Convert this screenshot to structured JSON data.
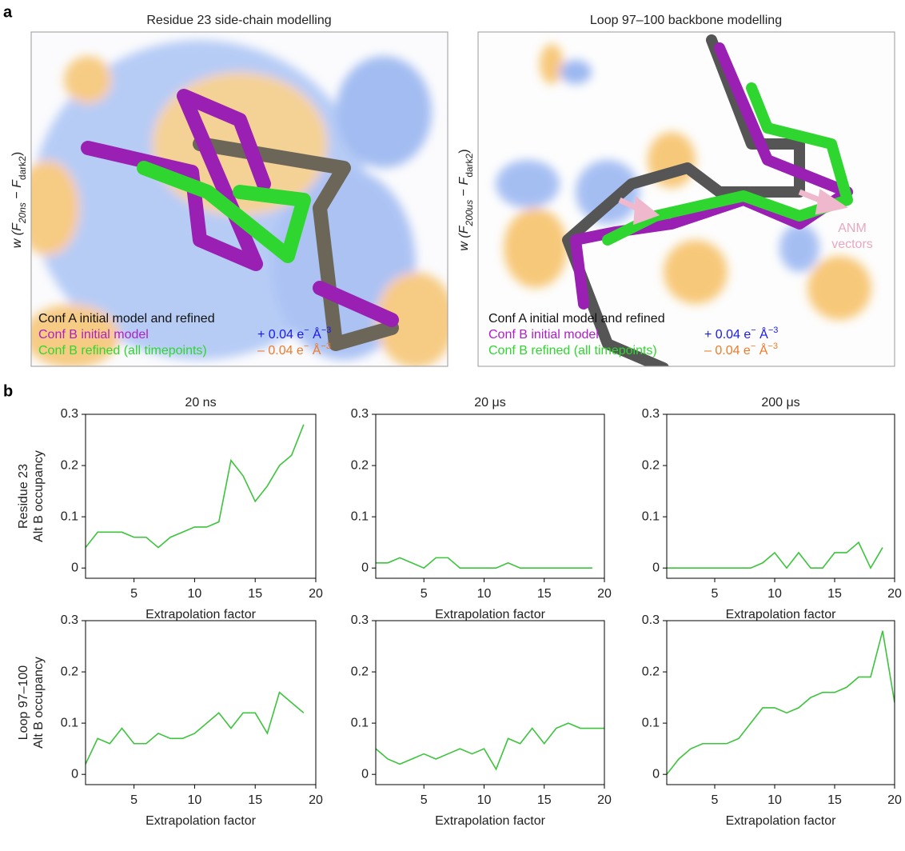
{
  "panel_labels": [
    "a",
    "b"
  ],
  "panel_a": [
    {
      "title": "Residue 23 side-chain modelling",
      "ylabel": [
        "w (",
        "F",
        "20ns",
        " − ",
        "F",
        "dark2",
        ")"
      ],
      "legend": [
        "Conf A initial model and refined",
        "Conf B initial model",
        "Conf B refined (all timepoints)"
      ],
      "legend_colors": [
        "#111111",
        "#b01ec8",
        "#2fd62f"
      ],
      "density": [
        [
          "+ 0.04 e",
          "−",
          " Å",
          "−3"
        ],
        [
          "– 0.04 e",
          "−",
          " Å",
          "−3"
        ]
      ],
      "density_colors": [
        "#1a1aee",
        "#f07a2a"
      ]
    },
    {
      "title": "Loop 97–100 backbone modelling",
      "ylabel": [
        "w (",
        "F",
        "200us",
        " − ",
        "F",
        "dark2",
        ")"
      ],
      "legend": [
        "Conf A initial model and refined",
        "Conf B initial model",
        "Conf B refined (all timepoints)"
      ],
      "legend_colors": [
        "#111111",
        "#b01ec8",
        "#2fd62f"
      ],
      "density": [
        [
          "+ 0.04 e",
          "−",
          " Å",
          "−3"
        ],
        [
          "– 0.04 e",
          "−",
          " Å",
          "−3"
        ]
      ],
      "density_colors": [
        "#1a1aee",
        "#f07a2a"
      ],
      "annotation": [
        "ANM",
        "vectors"
      ]
    }
  ],
  "chart_data": [
    {
      "type": "line",
      "title": "20 ns",
      "ylabel": [
        "Residue 23",
        "Alt B occupancy"
      ],
      "xlabel": "Extrapolation factor",
      "color": "#3cc43c",
      "x": [
        1,
        2,
        3,
        4,
        5,
        6,
        7,
        8,
        9,
        10,
        11,
        12,
        13,
        14,
        15,
        16,
        17,
        18,
        19
      ],
      "values": [
        0.04,
        0.07,
        0.07,
        0.07,
        0.06,
        0.06,
        0.04,
        0.06,
        0.07,
        0.08,
        0.08,
        0.09,
        0.21,
        0.18,
        0.13,
        0.16,
        0.2,
        0.22,
        0.28
      ],
      "xlim": [
        1,
        20
      ],
      "ylim": [
        -0.02,
        0.3
      ],
      "xticks": [
        5,
        10,
        15,
        20
      ],
      "yticks": [
        0,
        0.1,
        0.2,
        0.3
      ]
    },
    {
      "type": "line",
      "title": "20 μs",
      "xlabel": "Extrapolation factor",
      "color": "#3cc43c",
      "x": [
        1,
        2,
        3,
        4,
        5,
        6,
        7,
        8,
        9,
        10,
        11,
        12,
        13,
        14,
        15,
        16,
        17,
        18,
        19
      ],
      "values": [
        0.01,
        0.01,
        0.02,
        0.01,
        0,
        0.02,
        0.02,
        0,
        0,
        0,
        0,
        0.01,
        0,
        0,
        0,
        0,
        0,
        0,
        0
      ],
      "xlim": [
        1,
        20
      ],
      "ylim": [
        -0.02,
        0.3
      ],
      "xticks": [
        5,
        10,
        15,
        20
      ],
      "yticks": [
        0,
        0.1,
        0.2,
        0.3
      ]
    },
    {
      "type": "line",
      "title": "200 μs",
      "xlabel": "Extrapolation factor",
      "color": "#3cc43c",
      "x": [
        1,
        2,
        3,
        4,
        5,
        6,
        7,
        8,
        9,
        10,
        11,
        12,
        13,
        14,
        15,
        16,
        17,
        18,
        19
      ],
      "values": [
        0,
        0,
        0,
        0,
        0,
        0,
        0,
        0,
        0.01,
        0.03,
        0,
        0.03,
        0,
        0,
        0.03,
        0.03,
        0.05,
        0,
        0.04
      ],
      "xlim": [
        1,
        20
      ],
      "ylim": [
        -0.02,
        0.3
      ],
      "xticks": [
        5,
        10,
        15,
        20
      ],
      "yticks": [
        0,
        0.1,
        0.2,
        0.3
      ]
    },
    {
      "type": "line",
      "ylabel": [
        "Loop 97–100",
        "Alt B occupancy"
      ],
      "xlabel": "Extrapolation factor",
      "color": "#3cc43c",
      "x": [
        1,
        2,
        3,
        4,
        5,
        6,
        7,
        8,
        9,
        10,
        11,
        12,
        13,
        14,
        15,
        16,
        17,
        18,
        19
      ],
      "values": [
        0.02,
        0.07,
        0.06,
        0.09,
        0.06,
        0.06,
        0.08,
        0.07,
        0.07,
        0.08,
        0.1,
        0.12,
        0.09,
        0.12,
        0.12,
        0.08,
        0.16,
        0.14,
        0.12
      ],
      "xlim": [
        1,
        20
      ],
      "ylim": [
        -0.02,
        0.3
      ],
      "xticks": [
        5,
        10,
        15,
        20
      ],
      "yticks": [
        0,
        0.1,
        0.2,
        0.3
      ]
    },
    {
      "type": "line",
      "xlabel": "Extrapolation factor",
      "color": "#3cc43c",
      "x": [
        1,
        2,
        3,
        4,
        5,
        6,
        7,
        8,
        9,
        10,
        11,
        12,
        13,
        14,
        15,
        16,
        17,
        18,
        19,
        20
      ],
      "values": [
        0.05,
        0.03,
        0.02,
        0.03,
        0.04,
        0.03,
        0.04,
        0.05,
        0.04,
        0.05,
        0.01,
        0.07,
        0.06,
        0.09,
        0.06,
        0.09,
        0.1,
        0.09,
        0.09,
        0.09
      ],
      "xlim": [
        1,
        20
      ],
      "ylim": [
        -0.02,
        0.3
      ],
      "xticks": [
        5,
        10,
        15,
        20
      ],
      "yticks": [
        0,
        0.1,
        0.2,
        0.3
      ]
    },
    {
      "type": "line",
      "xlabel": "Extrapolation factor",
      "color": "#3cc43c",
      "x": [
        1,
        2,
        3,
        4,
        5,
        6,
        7,
        8,
        9,
        10,
        11,
        12,
        13,
        14,
        15,
        16,
        17,
        18,
        19,
        20
      ],
      "values": [
        0,
        0.03,
        0.05,
        0.06,
        0.06,
        0.06,
        0.07,
        0.1,
        0.13,
        0.13,
        0.12,
        0.13,
        0.15,
        0.16,
        0.16,
        0.17,
        0.19,
        0.19,
        0.28,
        0.14
      ],
      "xlim": [
        1,
        20
      ],
      "ylim": [
        -0.02,
        0.3
      ],
      "xticks": [
        5,
        10,
        15,
        20
      ],
      "yticks": [
        0,
        0.1,
        0.2,
        0.3
      ]
    }
  ]
}
